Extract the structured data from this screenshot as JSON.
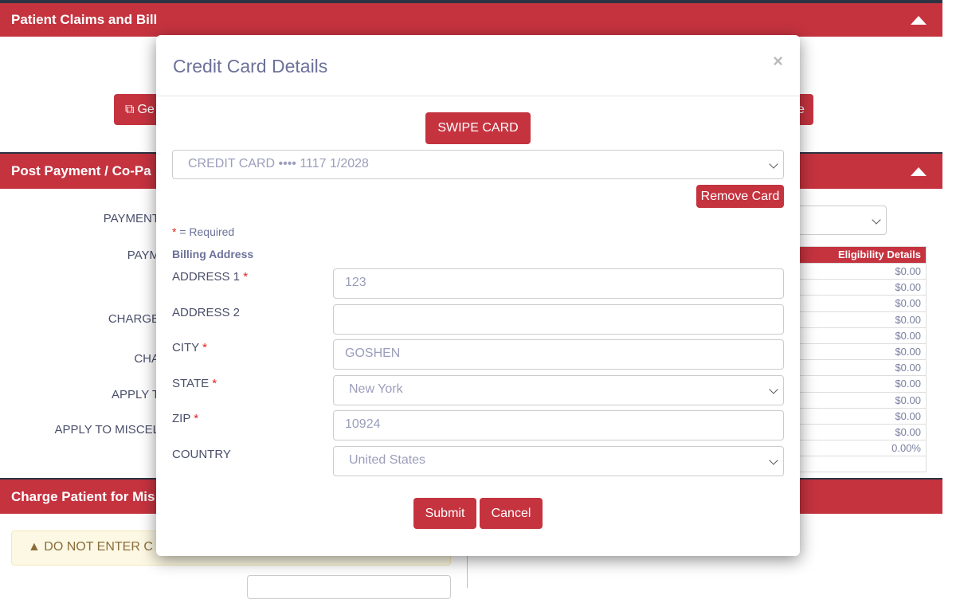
{
  "background": {
    "patient_claims_title": "Patient Claims and Bill",
    "generate_button_partial": "Ge",
    "right_button_partial": "e",
    "post_payment_title": "Post Payment / Co-Pa",
    "form_labels": [
      "PAYMENT",
      "PAYM",
      "CHARGE",
      "CHA",
      "APPLY T",
      "APPLY TO MISCEL"
    ],
    "table": {
      "header": "Eligibility Details",
      "values": [
        "$0.00",
        "$0.00",
        "$0.00",
        "$0.00",
        "$0.00",
        "$0.00",
        "$0.00",
        "$0.00",
        "$0.00",
        "$0.00",
        "$0.00",
        "0.00%",
        ""
      ]
    },
    "charge_patient_title": "Charge Patient for Mis",
    "warning_text": "DO NOT ENTER C"
  },
  "modal": {
    "title": "Credit Card Details",
    "close_label": "×",
    "swipe_label": "SWIPE CARD",
    "card_select": "CREDIT CARD •••• 1117 1/2028",
    "remove_label": "Remove Card",
    "required_star": "*",
    "required_text": " = Required",
    "billing_heading": "Billing Address",
    "fields": [
      {
        "label": "ADDRESS 1",
        "required": "*",
        "value": "123"
      },
      {
        "label": "ADDRESS 2",
        "required": "",
        "value": ""
      },
      {
        "label": "CITY",
        "required": "*",
        "value": "GOSHEN"
      },
      {
        "label": "STATE",
        "required": "*",
        "value": "New York"
      },
      {
        "label": "ZIP",
        "required": "*",
        "value": "10924"
      },
      {
        "label": "COUNTRY",
        "required": "",
        "value": "United States"
      }
    ],
    "submit_label": "Submit",
    "cancel_label": "Cancel"
  },
  "colors": {
    "accent": "#c5333f",
    "text": "#4a4f6a"
  }
}
